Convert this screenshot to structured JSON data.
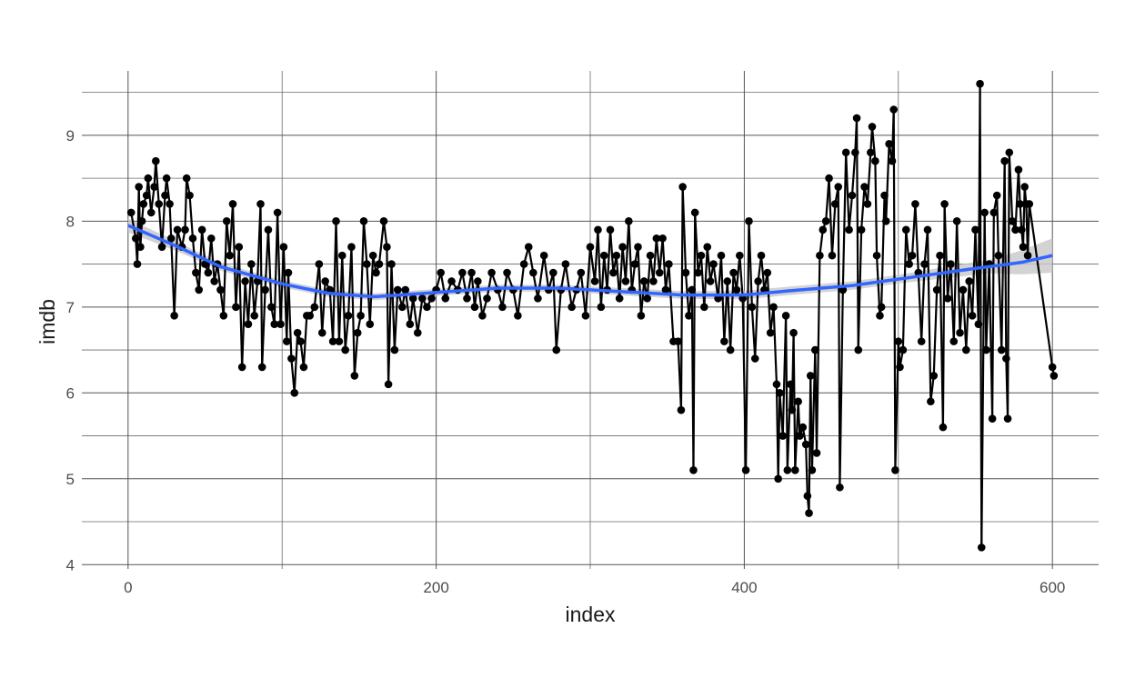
{
  "chart_data": {
    "type": "scatter",
    "xlabel": "index",
    "ylabel": "imdb",
    "xlim": [
      -30,
      630
    ],
    "ylim": [
      3.95,
      9.75
    ],
    "x_ticks": [
      0,
      200,
      400,
      600
    ],
    "y_ticks": [
      4,
      5,
      6,
      7,
      8,
      9
    ],
    "x_tick_labels": [
      "0",
      "200",
      "400",
      "600"
    ],
    "y_tick_labels": [
      "4",
      "5",
      "6",
      "7",
      "8",
      "9"
    ],
    "grid": true,
    "legend": "none",
    "colors": {
      "points": "#000000",
      "line": "#000000",
      "smooth": "#3366FF",
      "ribbon": "#C8C8C8"
    },
    "series": [
      {
        "kind": "points-connected",
        "points": [
          [
            2,
            8.1
          ],
          [
            5,
            7.8
          ],
          [
            6,
            7.5
          ],
          [
            7,
            8.4
          ],
          [
            8,
            7.7
          ],
          [
            9,
            8.0
          ],
          [
            10,
            8.2
          ],
          [
            12,
            8.3
          ],
          [
            13,
            8.5
          ],
          [
            15,
            8.1
          ],
          [
            17,
            8.4
          ],
          [
            18,
            8.7
          ],
          [
            20,
            8.2
          ],
          [
            22,
            7.7
          ],
          [
            24,
            8.3
          ],
          [
            25,
            8.5
          ],
          [
            27,
            8.2
          ],
          [
            28,
            7.8
          ],
          [
            30,
            6.9
          ],
          [
            32,
            7.9
          ],
          [
            35,
            7.7
          ],
          [
            37,
            7.9
          ],
          [
            38,
            8.5
          ],
          [
            40,
            8.3
          ],
          [
            42,
            7.8
          ],
          [
            44,
            7.4
          ],
          [
            46,
            7.2
          ],
          [
            48,
            7.9
          ],
          [
            50,
            7.5
          ],
          [
            52,
            7.4
          ],
          [
            54,
            7.8
          ],
          [
            56,
            7.3
          ],
          [
            58,
            7.5
          ],
          [
            60,
            7.2
          ],
          [
            62,
            6.9
          ],
          [
            64,
            8.0
          ],
          [
            66,
            7.6
          ],
          [
            68,
            8.2
          ],
          [
            70,
            7.0
          ],
          [
            72,
            7.7
          ],
          [
            74,
            6.3
          ],
          [
            76,
            7.3
          ],
          [
            78,
            6.8
          ],
          [
            80,
            7.5
          ],
          [
            82,
            6.9
          ],
          [
            84,
            7.3
          ],
          [
            86,
            8.2
          ],
          [
            87,
            6.3
          ],
          [
            89,
            7.2
          ],
          [
            91,
            7.9
          ],
          [
            93,
            7.0
          ],
          [
            95,
            6.8
          ],
          [
            97,
            8.1
          ],
          [
            99,
            6.8
          ],
          [
            101,
            7.7
          ],
          [
            103,
            6.6
          ],
          [
            104,
            7.4
          ],
          [
            106,
            6.4
          ],
          [
            108,
            6.0
          ],
          [
            110,
            6.7
          ],
          [
            112,
            6.6
          ],
          [
            114,
            6.3
          ],
          [
            116,
            6.9
          ],
          [
            118,
            6.9
          ],
          [
            121,
            7.0
          ],
          [
            124,
            7.5
          ],
          [
            126,
            6.7
          ],
          [
            128,
            7.3
          ],
          [
            131,
            7.2
          ],
          [
            133,
            6.6
          ],
          [
            135,
            8.0
          ],
          [
            137,
            6.6
          ],
          [
            139,
            7.6
          ],
          [
            141,
            6.5
          ],
          [
            143,
            6.9
          ],
          [
            145,
            7.7
          ],
          [
            147,
            6.2
          ],
          [
            149,
            6.7
          ],
          [
            151,
            6.9
          ],
          [
            153,
            8.0
          ],
          [
            155,
            7.5
          ],
          [
            157,
            6.8
          ],
          [
            159,
            7.6
          ],
          [
            161,
            7.4
          ],
          [
            163,
            7.5
          ],
          [
            166,
            8.0
          ],
          [
            168,
            7.7
          ],
          [
            169,
            6.1
          ],
          [
            171,
            7.5
          ],
          [
            173,
            6.5
          ],
          [
            175,
            7.2
          ],
          [
            178,
            7.0
          ],
          [
            180,
            7.2
          ],
          [
            183,
            6.8
          ],
          [
            185,
            7.1
          ],
          [
            188,
            6.7
          ],
          [
            191,
            7.1
          ],
          [
            194,
            7.0
          ],
          [
            197,
            7.1
          ],
          [
            200,
            7.2
          ],
          [
            203,
            7.4
          ],
          [
            206,
            7.1
          ],
          [
            210,
            7.3
          ],
          [
            214,
            7.2
          ],
          [
            217,
            7.4
          ],
          [
            220,
            7.1
          ],
          [
            223,
            7.4
          ],
          [
            225,
            7.0
          ],
          [
            227,
            7.3
          ],
          [
            230,
            6.9
          ],
          [
            233,
            7.1
          ],
          [
            236,
            7.4
          ],
          [
            240,
            7.2
          ],
          [
            243,
            7.0
          ],
          [
            246,
            7.4
          ],
          [
            250,
            7.2
          ],
          [
            253,
            6.9
          ],
          [
            257,
            7.5
          ],
          [
            260,
            7.7
          ],
          [
            263,
            7.4
          ],
          [
            266,
            7.1
          ],
          [
            270,
            7.6
          ],
          [
            273,
            7.2
          ],
          [
            276,
            7.4
          ],
          [
            278,
            6.5
          ],
          [
            281,
            7.2
          ],
          [
            284,
            7.5
          ],
          [
            288,
            7.0
          ],
          [
            291,
            7.2
          ],
          [
            294,
            7.4
          ],
          [
            297,
            6.9
          ],
          [
            300,
            7.7
          ],
          [
            303,
            7.3
          ],
          [
            305,
            7.9
          ],
          [
            307,
            7.0
          ],
          [
            309,
            7.6
          ],
          [
            311,
            7.2
          ],
          [
            313,
            7.9
          ],
          [
            315,
            7.4
          ],
          [
            317,
            7.6
          ],
          [
            319,
            7.1
          ],
          [
            321,
            7.7
          ],
          [
            323,
            7.3
          ],
          [
            325,
            8.0
          ],
          [
            327,
            7.2
          ],
          [
            329,
            7.5
          ],
          [
            331,
            7.7
          ],
          [
            333,
            6.9
          ],
          [
            335,
            7.3
          ],
          [
            337,
            7.1
          ],
          [
            339,
            7.6
          ],
          [
            341,
            7.3
          ],
          [
            343,
            7.8
          ],
          [
            345,
            7.4
          ],
          [
            347,
            7.8
          ],
          [
            349,
            7.2
          ],
          [
            351,
            7.5
          ],
          [
            354,
            6.6
          ],
          [
            357,
            6.6
          ],
          [
            359,
            5.8
          ],
          [
            360,
            8.4
          ],
          [
            362,
            7.4
          ],
          [
            364,
            6.9
          ],
          [
            366,
            7.2
          ],
          [
            367,
            5.1
          ],
          [
            368,
            8.1
          ],
          [
            370,
            7.4
          ],
          [
            372,
            7.6
          ],
          [
            374,
            7.0
          ],
          [
            376,
            7.7
          ],
          [
            378,
            7.3
          ],
          [
            380,
            7.5
          ],
          [
            383,
            7.1
          ],
          [
            385,
            7.6
          ],
          [
            387,
            6.6
          ],
          [
            389,
            7.3
          ],
          [
            391,
            6.5
          ],
          [
            393,
            7.4
          ],
          [
            395,
            7.2
          ],
          [
            397,
            7.6
          ],
          [
            399,
            7.1
          ],
          [
            401,
            5.1
          ],
          [
            403,
            8.0
          ],
          [
            405,
            7.0
          ],
          [
            407,
            6.4
          ],
          [
            409,
            7.3
          ],
          [
            411,
            7.6
          ],
          [
            413,
            7.2
          ],
          [
            415,
            7.4
          ],
          [
            417,
            6.7
          ],
          [
            419,
            7.0
          ],
          [
            421,
            6.1
          ],
          [
            422,
            5.0
          ],
          [
            423,
            6.0
          ],
          [
            425,
            5.5
          ],
          [
            427,
            6.9
          ],
          [
            428,
            5.1
          ],
          [
            430,
            6.1
          ],
          [
            431,
            5.8
          ],
          [
            432,
            6.7
          ],
          [
            433,
            5.1
          ],
          [
            435,
            5.9
          ],
          [
            436,
            5.5
          ],
          [
            438,
            5.6
          ],
          [
            440,
            5.4
          ],
          [
            441,
            4.8
          ],
          [
            442,
            4.6
          ],
          [
            443,
            6.2
          ],
          [
            444,
            5.1
          ],
          [
            446,
            6.5
          ],
          [
            447,
            5.3
          ],
          [
            449,
            7.6
          ],
          [
            451,
            7.9
          ],
          [
            453,
            8.0
          ],
          [
            455,
            8.5
          ],
          [
            457,
            7.6
          ],
          [
            459,
            8.2
          ],
          [
            461,
            8.4
          ],
          [
            462,
            4.9
          ],
          [
            464,
            7.2
          ],
          [
            466,
            8.8
          ],
          [
            468,
            7.9
          ],
          [
            470,
            8.3
          ],
          [
            472,
            8.8
          ],
          [
            473,
            9.2
          ],
          [
            474,
            6.5
          ],
          [
            476,
            7.9
          ],
          [
            478,
            8.4
          ],
          [
            480,
            8.2
          ],
          [
            482,
            8.8
          ],
          [
            483,
            9.1
          ],
          [
            485,
            8.7
          ],
          [
            486,
            7.6
          ],
          [
            488,
            6.9
          ],
          [
            489,
            7.0
          ],
          [
            491,
            8.3
          ],
          [
            492,
            8.0
          ],
          [
            494,
            8.9
          ],
          [
            496,
            8.7
          ],
          [
            497,
            9.3
          ],
          [
            498,
            5.1
          ],
          [
            500,
            6.6
          ],
          [
            501,
            6.3
          ],
          [
            503,
            6.5
          ],
          [
            505,
            7.9
          ],
          [
            507,
            7.5
          ],
          [
            509,
            7.6
          ],
          [
            511,
            8.2
          ],
          [
            513,
            7.4
          ],
          [
            515,
            6.6
          ],
          [
            517,
            7.5
          ],
          [
            519,
            7.9
          ],
          [
            521,
            5.9
          ],
          [
            523,
            6.2
          ],
          [
            525,
            7.2
          ],
          [
            527,
            7.6
          ],
          [
            529,
            5.6
          ],
          [
            530,
            8.2
          ],
          [
            532,
            7.1
          ],
          [
            534,
            7.5
          ],
          [
            536,
            6.6
          ],
          [
            538,
            8.0
          ],
          [
            540,
            6.7
          ],
          [
            542,
            7.2
          ],
          [
            544,
            6.5
          ],
          [
            546,
            7.3
          ],
          [
            548,
            6.9
          ],
          [
            550,
            7.9
          ],
          [
            552,
            6.8
          ],
          [
            553,
            9.6
          ],
          [
            554,
            4.2
          ],
          [
            556,
            8.1
          ],
          [
            557,
            6.5
          ],
          [
            559,
            7.5
          ],
          [
            561,
            5.7
          ],
          [
            562,
            8.1
          ],
          [
            564,
            8.3
          ],
          [
            565,
            7.6
          ],
          [
            567,
            6.5
          ],
          [
            569,
            8.7
          ],
          [
            570,
            6.4
          ],
          [
            571,
            5.7
          ],
          [
            572,
            8.8
          ],
          [
            574,
            8.0
          ],
          [
            576,
            7.9
          ],
          [
            578,
            8.6
          ],
          [
            579,
            8.2
          ],
          [
            580,
            7.9
          ],
          [
            581,
            7.7
          ],
          [
            582,
            8.4
          ],
          [
            583,
            8.2
          ],
          [
            584,
            7.6
          ],
          [
            585,
            8.2
          ],
          [
            600,
            6.3
          ],
          [
            601,
            6.2
          ]
        ]
      },
      {
        "kind": "smooth",
        "points": [
          [
            0,
            7.95
          ],
          [
            30,
            7.72
          ],
          [
            60,
            7.47
          ],
          [
            100,
            7.27
          ],
          [
            130,
            7.16
          ],
          [
            160,
            7.12
          ],
          [
            200,
            7.17
          ],
          [
            240,
            7.22
          ],
          [
            280,
            7.22
          ],
          [
            320,
            7.18
          ],
          [
            360,
            7.14
          ],
          [
            400,
            7.14
          ],
          [
            430,
            7.19
          ],
          [
            470,
            7.25
          ],
          [
            510,
            7.35
          ],
          [
            550,
            7.45
          ],
          [
            580,
            7.52
          ],
          [
            600,
            7.6
          ]
        ],
        "ribbon_halfwidth": [
          [
            0,
            0.08
          ],
          [
            40,
            0.05
          ],
          [
            100,
            0.04
          ],
          [
            200,
            0.04
          ],
          [
            300,
            0.04
          ],
          [
            400,
            0.05
          ],
          [
            500,
            0.05
          ],
          [
            560,
            0.08
          ],
          [
            600,
            0.2
          ]
        ]
      }
    ]
  }
}
